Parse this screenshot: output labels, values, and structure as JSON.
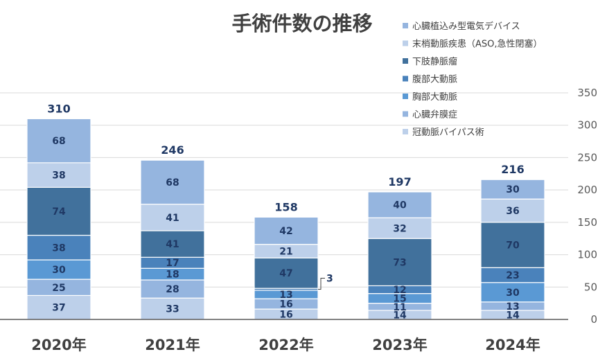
{
  "chart_data": {
    "type": "bar",
    "stacked": true,
    "title": "手術件数の推移",
    "categories": [
      "2020年",
      "2021年",
      "2022年",
      "2023年",
      "2024年"
    ],
    "series": [
      {
        "name": "冠動脈バイパス術",
        "color": "#bdd0ea",
        "values": [
          37,
          33,
          16,
          14,
          14
        ]
      },
      {
        "name": "心臓弁膜症",
        "color": "#95b5df",
        "values": [
          25,
          28,
          16,
          11,
          13
        ]
      },
      {
        "name": "胸部大動脈",
        "color": "#5a99d4",
        "values": [
          30,
          18,
          13,
          15,
          30
        ]
      },
      {
        "name": "腹部大動脈",
        "color": "#4a82bb",
        "values": [
          38,
          17,
          3,
          12,
          23
        ]
      },
      {
        "name": "下肢静脈瘤",
        "color": "#41719c",
        "values": [
          74,
          41,
          47,
          73,
          70
        ]
      },
      {
        "name": "末梢動脈疾患（ASO,急性閉塞）",
        "color": "#bdd0ea",
        "values": [
          38,
          41,
          21,
          32,
          36
        ]
      },
      {
        "name": "心臓植込み型電気デバイス",
        "color": "#95b5df",
        "values": [
          68,
          68,
          42,
          40,
          30
        ]
      }
    ],
    "totals": [
      310,
      246,
      158,
      197,
      216
    ],
    "ylim": [
      0,
      350
    ],
    "yticks": [
      0,
      50,
      100,
      150,
      200,
      250,
      300,
      350
    ],
    "y_axis_side": "right",
    "grid": true,
    "legend_position": "top-right"
  }
}
